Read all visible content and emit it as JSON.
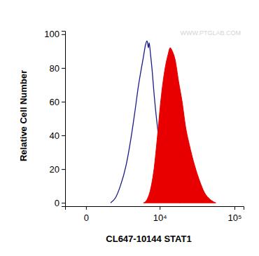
{
  "chart_data": {
    "type": "line",
    "x_label": "CL647-10144 STAT1",
    "y_label": "Relative Cell Number",
    "annotations": [
      "WWW.PTGLAB.COM"
    ],
    "log": "x",
    "xlim": [
      -1100,
      131000
    ],
    "ylim": [
      -2,
      102
    ],
    "xticks": [
      0,
      {
        "value": 10000,
        "label": "10⁴"
      },
      {
        "value": 100000,
        "label": "10⁵"
      }
    ],
    "yticks": [
      0,
      20,
      40,
      60,
      80,
      100
    ],
    "series": [
      {
        "type": "line",
        "color": "#1c1c8a",
        "x": [
          1370,
          1785,
          2260,
          2900,
          3550,
          4190,
          4780,
          5310,
          5730,
          6170,
          6490,
          6810,
          6980,
          7330,
          7690,
          8260,
          9090,
          9970,
          10950,
          12550,
          14700,
          17170,
          19600
        ],
        "values": [
          0,
          3,
          10,
          22,
          38,
          55,
          70,
          80,
          87,
          94,
          96,
          92,
          95,
          88,
          80,
          65,
          48,
          35,
          25,
          15,
          7,
          2,
          0
        ]
      },
      {
        "type": "area",
        "color": "#e80000",
        "x": [
          5730,
          6490,
          7330,
          8260,
          9300,
          10450,
          11730,
          13130,
          14060,
          15030,
          16440,
          18350,
          20490,
          22850,
          25470,
          30250,
          35130,
          40770,
          48310,
          57200
        ],
        "values": [
          0,
          2,
          8,
          20,
          40,
          62,
          78,
          88,
          92,
          90,
          85,
          72,
          60,
          45,
          35,
          22,
          13,
          6,
          2,
          0
        ]
      }
    ]
  }
}
